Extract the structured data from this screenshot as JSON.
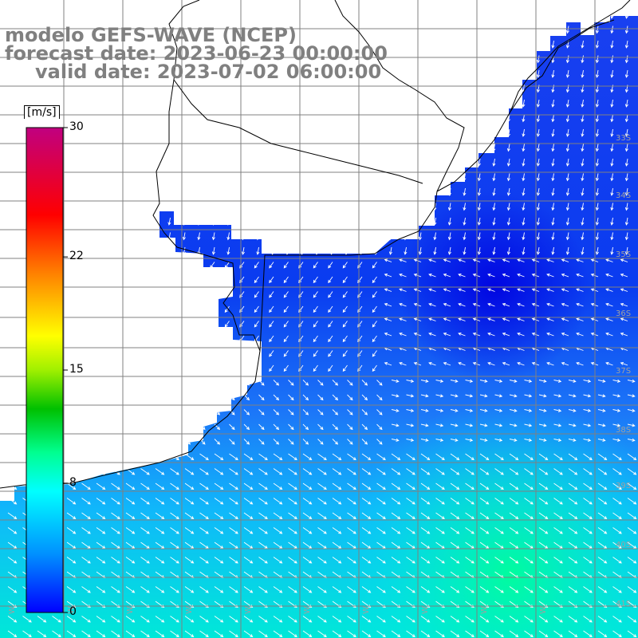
{
  "title": {
    "line1": "modelo GEFS-WAVE (NCEP)",
    "line2": "forecast date: 2023-06-23 00:00:00",
    "line3": "valid date: 2023-07-02 06:00:00"
  },
  "colorbar": {
    "unit": "[m/s]",
    "min": 0,
    "max": 30,
    "ticks": [
      {
        "value": 30,
        "label": "30"
      },
      {
        "value": 22,
        "label": "22"
      },
      {
        "value": 15,
        "label": "15"
      },
      {
        "value": 8,
        "label": "8"
      },
      {
        "value": 0,
        "label": "0"
      }
    ],
    "colors": [
      "#0000ff",
      "#00a0ff",
      "#00ffff",
      "#00ff80",
      "#00c000",
      "#80e000",
      "#ffff00",
      "#ff8000",
      "#ff0000",
      "#c00080"
    ]
  },
  "map": {
    "lon_labels": [
      "W",
      "W",
      "W",
      "W",
      "W",
      "W",
      "W",
      "W",
      "W",
      "W"
    ],
    "lat_labels": [
      "33S",
      "34S",
      "35S",
      "36S",
      "37S",
      "38S",
      "39S",
      "40S",
      "41S"
    ],
    "land_color": "#ffffff",
    "grid_color": "#808080",
    "arrow_color": "#ffffff"
  }
}
